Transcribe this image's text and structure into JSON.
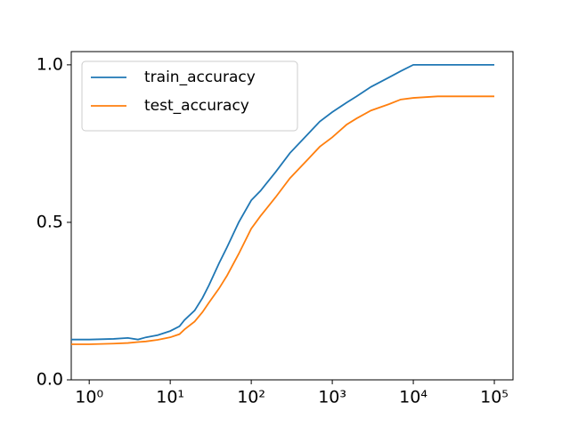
{
  "chart_data": {
    "type": "line",
    "log_x": true,
    "legend": "upper left",
    "x": [
      0.6,
      1,
      2,
      3,
      4,
      5,
      7,
      10,
      13,
      15,
      20,
      25,
      30,
      40,
      50,
      70,
      100,
      130,
      150,
      200,
      300,
      500,
      700,
      1000,
      1500,
      2000,
      3000,
      5000,
      7000,
      10000,
      20000,
      50000,
      100000
    ],
    "series": [
      {
        "name": "train_accuracy",
        "color": "#1f77b4",
        "values": [
          0.128,
          0.128,
          0.13,
          0.133,
          0.128,
          0.135,
          0.142,
          0.155,
          0.17,
          0.19,
          0.22,
          0.26,
          0.3,
          0.37,
          0.42,
          0.5,
          0.57,
          0.6,
          0.62,
          0.66,
          0.72,
          0.78,
          0.82,
          0.85,
          0.88,
          0.9,
          0.93,
          0.96,
          0.98,
          1.0,
          1.0,
          1.0,
          1.0
        ]
      },
      {
        "name": "test_accuracy",
        "color": "#ff7f0e",
        "values": [
          0.113,
          0.113,
          0.115,
          0.117,
          0.12,
          0.122,
          0.127,
          0.135,
          0.145,
          0.16,
          0.185,
          0.215,
          0.245,
          0.29,
          0.33,
          0.4,
          0.48,
          0.52,
          0.54,
          0.58,
          0.64,
          0.7,
          0.74,
          0.77,
          0.81,
          0.83,
          0.855,
          0.875,
          0.89,
          0.895,
          0.9,
          0.9,
          0.9
        ]
      }
    ],
    "xlim": [
      0.6,
      170000
    ],
    "xticks": [
      {
        "value": 1,
        "label": "10⁰"
      },
      {
        "value": 10,
        "label": "10¹"
      },
      {
        "value": 100,
        "label": "10²"
      },
      {
        "value": 1000,
        "label": "10³"
      },
      {
        "value": 10000,
        "label": "10⁴"
      },
      {
        "value": 100000,
        "label": "10⁵"
      }
    ],
    "ylim": [
      0,
      1.042
    ],
    "yticks": [
      {
        "value": 0,
        "label": "0.0"
      },
      {
        "value": 0.5,
        "label": "0.5"
      },
      {
        "value": 1,
        "label": "1.0"
      }
    ]
  }
}
